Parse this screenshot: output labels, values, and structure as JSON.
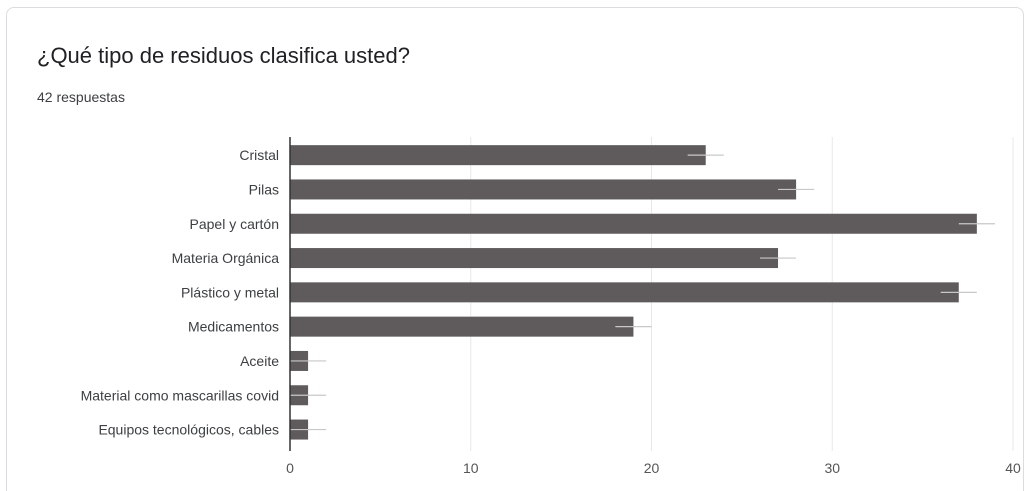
{
  "card": {
    "title": "¿Qué tipo de residuos clasifica usted?",
    "subtitle": "42 respuestas"
  },
  "chart_data": {
    "type": "bar",
    "orientation": "horizontal",
    "categories": [
      "Cristal",
      "Pilas",
      "Papel y cartón",
      "Materia Orgánica",
      "Plástico y metal",
      "Medicamentos",
      "Aceite",
      "Material como mascarillas covid",
      "Equipos tecnológicos, cables"
    ],
    "values": [
      23,
      28,
      38,
      27,
      37,
      19,
      1,
      1,
      1
    ],
    "error_bar": 1,
    "xlim": [
      0,
      40
    ],
    "xticks": [
      0,
      10,
      20,
      30,
      40
    ],
    "grid": true,
    "bar_color": "#5f5b5c",
    "error_color": "#c8c8c8",
    "grid_color": "#e8e8e8",
    "axis_color": "#333333"
  }
}
